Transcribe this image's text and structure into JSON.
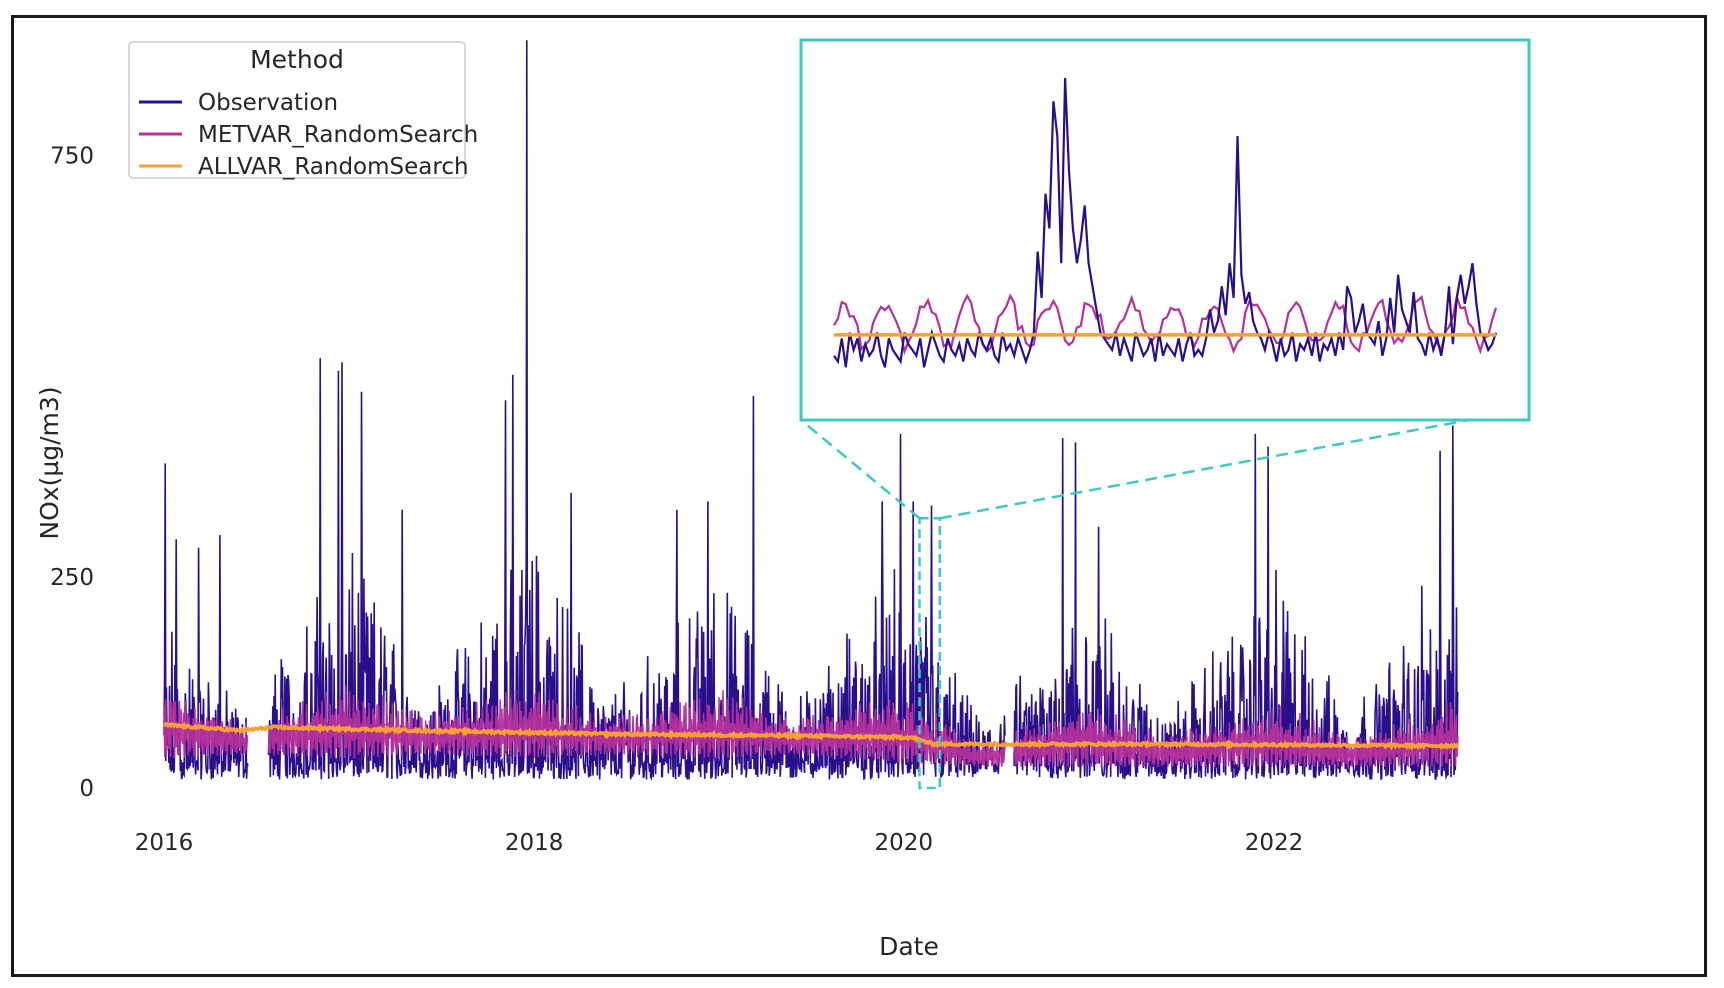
{
  "chart_data": {
    "type": "line",
    "title": "",
    "xlabel": "Date",
    "ylabel": "NOx(µg/m3)",
    "x_range": [
      "2016-01-01",
      "2023-01-31"
    ],
    "ylim": [
      0,
      860
    ],
    "x_ticks": [
      {
        "value": "2016-01-01",
        "label": "2016"
      },
      {
        "value": "2018-01-01",
        "label": "2018"
      },
      {
        "value": "2020-01-01",
        "label": "2020"
      },
      {
        "value": "2022-01-01",
        "label": "2022"
      }
    ],
    "y_ticks": [
      0,
      250,
      750
    ],
    "grid": false,
    "legend": {
      "title": "Method",
      "placement": "top-left",
      "entries": [
        {
          "name": "Observation",
          "color": "#2a0f8c"
        },
        {
          "name": "METVAR_RandomSearch",
          "color": "#b5319b"
        },
        {
          "name": "ALLVAR_RandomSearch",
          "color": "#f8a035"
        }
      ]
    },
    "series": [
      {
        "name": "Observation",
        "color": "#2a0f8c",
        "baseline_min": 10,
        "seasonal_envelope": [
          {
            "date": "2016-01-15",
            "typical_max": 180
          },
          {
            "date": "2016-06-01",
            "typical_max": 90
          },
          {
            "date": "2017-01-01",
            "typical_max": 260
          },
          {
            "date": "2017-06-01",
            "typical_max": 100
          },
          {
            "date": "2018-01-01",
            "typical_max": 280
          },
          {
            "date": "2018-06-01",
            "typical_max": 110
          },
          {
            "date": "2019-01-01",
            "typical_max": 230
          },
          {
            "date": "2019-06-01",
            "typical_max": 100
          },
          {
            "date": "2020-01-01",
            "typical_max": 250
          },
          {
            "date": "2020-06-01",
            "typical_max": 70
          },
          {
            "date": "2021-01-01",
            "typical_max": 220
          },
          {
            "date": "2021-06-01",
            "typical_max": 80
          },
          {
            "date": "2022-01-01",
            "typical_max": 240
          },
          {
            "date": "2022-06-01",
            "typical_max": 80
          },
          {
            "date": "2022-12-31",
            "typical_max": 260
          }
        ],
        "peaks": [
          {
            "date": "2016-01-04",
            "value": 385
          },
          {
            "date": "2016-01-25",
            "value": 295
          },
          {
            "date": "2016-03-10",
            "value": 285
          },
          {
            "date": "2016-04-20",
            "value": 300
          },
          {
            "date": "2016-11-05",
            "value": 510
          },
          {
            "date": "2016-12-10",
            "value": 495
          },
          {
            "date": "2016-12-18",
            "value": 505
          },
          {
            "date": "2017-01-25",
            "value": 470
          },
          {
            "date": "2017-04-15",
            "value": 330
          },
          {
            "date": "2017-11-05",
            "value": 460
          },
          {
            "date": "2017-11-20",
            "value": 490
          },
          {
            "date": "2017-12-18",
            "value": 887
          },
          {
            "date": "2018-03-15",
            "value": 350
          },
          {
            "date": "2018-10-10",
            "value": 330
          },
          {
            "date": "2018-12-10",
            "value": 340
          },
          {
            "date": "2019-03-10",
            "value": 465
          },
          {
            "date": "2019-11-20",
            "value": 340
          },
          {
            "date": "2019-12-25",
            "value": 420
          },
          {
            "date": "2020-01-20",
            "value": 340
          },
          {
            "date": "2020-02-25",
            "value": 335
          },
          {
            "date": "2020-11-10",
            "value": 415
          },
          {
            "date": "2020-12-05",
            "value": 410
          },
          {
            "date": "2021-01-20",
            "value": 310
          },
          {
            "date": "2021-11-25",
            "value": 420
          },
          {
            "date": "2021-12-20",
            "value": 405
          },
          {
            "date": "2022-10-20",
            "value": 240
          },
          {
            "date": "2022-11-25",
            "value": 400
          },
          {
            "date": "2022-12-20",
            "value": 430
          }
        ],
        "gaps": [
          [
            "2016-06-15",
            "2016-07-25"
          ],
          [
            "2020-07-20",
            "2020-08-05"
          ]
        ]
      },
      {
        "name": "METVAR_RandomSearch",
        "color": "#b5319b",
        "seasonal_range": [
          {
            "date": "2016-01-15",
            "low": 35,
            "high": 120
          },
          {
            "date": "2016-06-10",
            "low": 40,
            "high": 80
          },
          {
            "date": "2017-01-01",
            "low": 35,
            "high": 130
          },
          {
            "date": "2017-06-01",
            "low": 40,
            "high": 90
          },
          {
            "date": "2018-01-01",
            "low": 35,
            "high": 125
          },
          {
            "date": "2018-06-01",
            "low": 40,
            "high": 85
          },
          {
            "date": "2019-01-01",
            "low": 35,
            "high": 120
          },
          {
            "date": "2019-06-01",
            "low": 40,
            "high": 85
          },
          {
            "date": "2020-01-01",
            "low": 30,
            "high": 115
          },
          {
            "date": "2020-06-01",
            "low": 25,
            "high": 55
          },
          {
            "date": "2021-01-01",
            "low": 25,
            "high": 105
          },
          {
            "date": "2021-06-01",
            "low": 25,
            "high": 65
          },
          {
            "date": "2022-01-01",
            "low": 25,
            "high": 105
          },
          {
            "date": "2022-06-01",
            "low": 25,
            "high": 60
          },
          {
            "date": "2022-12-31",
            "low": 25,
            "high": 110
          }
        ]
      },
      {
        "name": "ALLVAR_RandomSearch",
        "color": "#f8a035",
        "trend": [
          {
            "date": "2016-01-01",
            "value": 75
          },
          {
            "date": "2016-06-01",
            "value": 68
          },
          {
            "date": "2016-08-01",
            "value": 72
          },
          {
            "date": "2017-06-01",
            "value": 68
          },
          {
            "date": "2018-06-01",
            "value": 64
          },
          {
            "date": "2019-06-01",
            "value": 62
          },
          {
            "date": "2020-01-15",
            "value": 60
          },
          {
            "date": "2020-03-01",
            "value": 52
          },
          {
            "date": "2021-06-01",
            "value": 52
          },
          {
            "date": "2023-01-01",
            "value": 50
          }
        ]
      }
    ],
    "inset": {
      "x_range": [
        "2020-02-01",
        "2020-03-12"
      ],
      "y_range": [
        0,
        320
      ],
      "observation": [
        40,
        35,
        55,
        30,
        60,
        45,
        55,
        35,
        50,
        40,
        45,
        60,
        40,
        30,
        55,
        45,
        40,
        35,
        60,
        50,
        45,
        40,
        55,
        30,
        45,
        60,
        50,
        40,
        35,
        55,
        45,
        40,
        50,
        35,
        55,
        45,
        40,
        60,
        50,
        45,
        55,
        40,
        35,
        60,
        45,
        50,
        40,
        55,
        45,
        35,
        45,
        60,
        130,
        90,
        180,
        150,
        260,
        230,
        120,
        280,
        200,
        150,
        120,
        140,
        170,
        120,
        100,
        80,
        60,
        55,
        50,
        45,
        60,
        40,
        55,
        45,
        35,
        60,
        50,
        40,
        45,
        55,
        35,
        60,
        40,
        50,
        45,
        40,
        55,
        35,
        50,
        60,
        40,
        45,
        40,
        55,
        80,
        60,
        70,
        100,
        75,
        120,
        90,
        230,
        110,
        85,
        95,
        70,
        60,
        55,
        45,
        60,
        50,
        35,
        55,
        40,
        45,
        60,
        35,
        50,
        45,
        55,
        40,
        60,
        35,
        50,
        45,
        55,
        40,
        60,
        45,
        100,
        90,
        60,
        70,
        85,
        60,
        55,
        50,
        70,
        40,
        55,
        90,
        60,
        110,
        80,
        70,
        60,
        95,
        55,
        50,
        40,
        60,
        45,
        55,
        40,
        60,
        100,
        50,
        90,
        110,
        85,
        100,
        120,
        85,
        60,
        55,
        45,
        50,
        60
      ]
    }
  }
}
